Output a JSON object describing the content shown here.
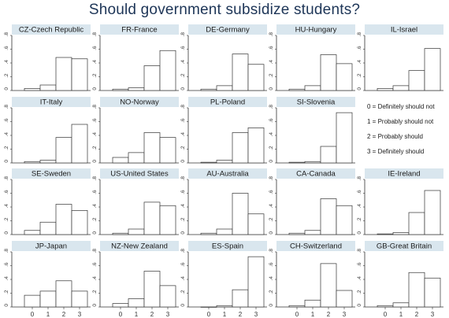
{
  "title": "Should government subsidize students?",
  "colors": {
    "title": "#1d3557",
    "strip": "#d9e6ee",
    "bar_fill": "#ffffff",
    "bar_stroke": "#333333",
    "frame": "#333333"
  },
  "legend": {
    "items": [
      "0 = Definitely should not",
      "1 = Probably should not",
      "2 = Probably should",
      "3 = Definitely should"
    ]
  },
  "chart_data": {
    "type": "bar",
    "subtype": "histogram-facets",
    "categories": [
      0,
      1,
      2,
      3
    ],
    "ylim": [
      0,
      0.8
    ],
    "yticks": [
      0,
      0.2,
      0.4,
      0.6,
      0.8
    ],
    "ytick_labels": [
      "0",
      ".2",
      ".4",
      ".6",
      ".8"
    ],
    "xtick_labels": [
      "0",
      "1",
      "2",
      "3"
    ],
    "grid": false,
    "panels": [
      {
        "name": "CZ-Czech Republic",
        "values": [
          0.03,
          0.08,
          0.48,
          0.46
        ]
      },
      {
        "name": "FR-France",
        "values": [
          0.02,
          0.04,
          0.36,
          0.58
        ]
      },
      {
        "name": "DE-Germany",
        "values": [
          0.02,
          0.07,
          0.53,
          0.38
        ]
      },
      {
        "name": "HU-Hungary",
        "values": [
          0.02,
          0.07,
          0.52,
          0.39
        ]
      },
      {
        "name": "IL-Israel",
        "values": [
          0.03,
          0.07,
          0.29,
          0.61
        ]
      },
      {
        "name": "IT-Italy",
        "values": [
          0.02,
          0.04,
          0.37,
          0.56
        ]
      },
      {
        "name": "NO-Norway",
        "values": [
          0.08,
          0.15,
          0.44,
          0.37
        ]
      },
      {
        "name": "PL-Poland",
        "values": [
          0.01,
          0.04,
          0.44,
          0.51
        ]
      },
      {
        "name": "SI-Slovenia",
        "values": [
          0.01,
          0.02,
          0.24,
          0.73
        ]
      },
      {
        "name": "SE-Sweden",
        "values": [
          0.06,
          0.18,
          0.44,
          0.35
        ]
      },
      {
        "name": "US-United States",
        "values": [
          0.02,
          0.08,
          0.47,
          0.42
        ]
      },
      {
        "name": "AU-Australia",
        "values": [
          0.02,
          0.08,
          0.6,
          0.3
        ]
      },
      {
        "name": "CA-Canada",
        "values": [
          0.02,
          0.06,
          0.52,
          0.42
        ]
      },
      {
        "name": "IE-Ireland",
        "values": [
          0.01,
          0.03,
          0.32,
          0.64
        ]
      },
      {
        "name": "JP-Japan",
        "values": [
          0.17,
          0.23,
          0.38,
          0.23
        ]
      },
      {
        "name": "NZ-New Zealand",
        "values": [
          0.05,
          0.12,
          0.52,
          0.31
        ]
      },
      {
        "name": "ES-Spain",
        "values": [
          0.0,
          0.02,
          0.25,
          0.73
        ]
      },
      {
        "name": "CH-Switzerland",
        "values": [
          0.02,
          0.1,
          0.63,
          0.24
        ]
      },
      {
        "name": "GB-Great Britain",
        "values": [
          0.02,
          0.06,
          0.5,
          0.42
        ]
      }
    ]
  }
}
